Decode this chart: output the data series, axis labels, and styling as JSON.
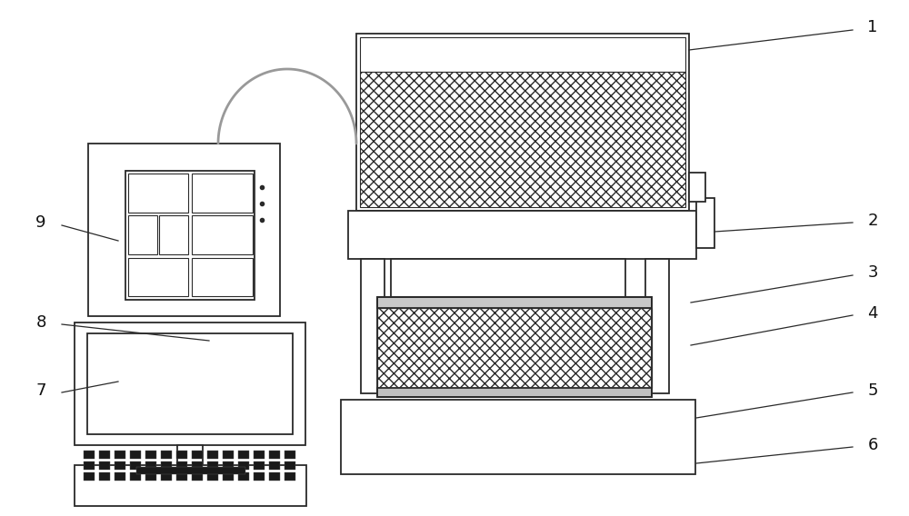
{
  "bg_color": "#ffffff",
  "line_color": "#2a2a2a",
  "label_color": "#111111",
  "curve_color": "#999999",
  "figsize": [
    10.0,
    5.68
  ],
  "dpi": 100
}
